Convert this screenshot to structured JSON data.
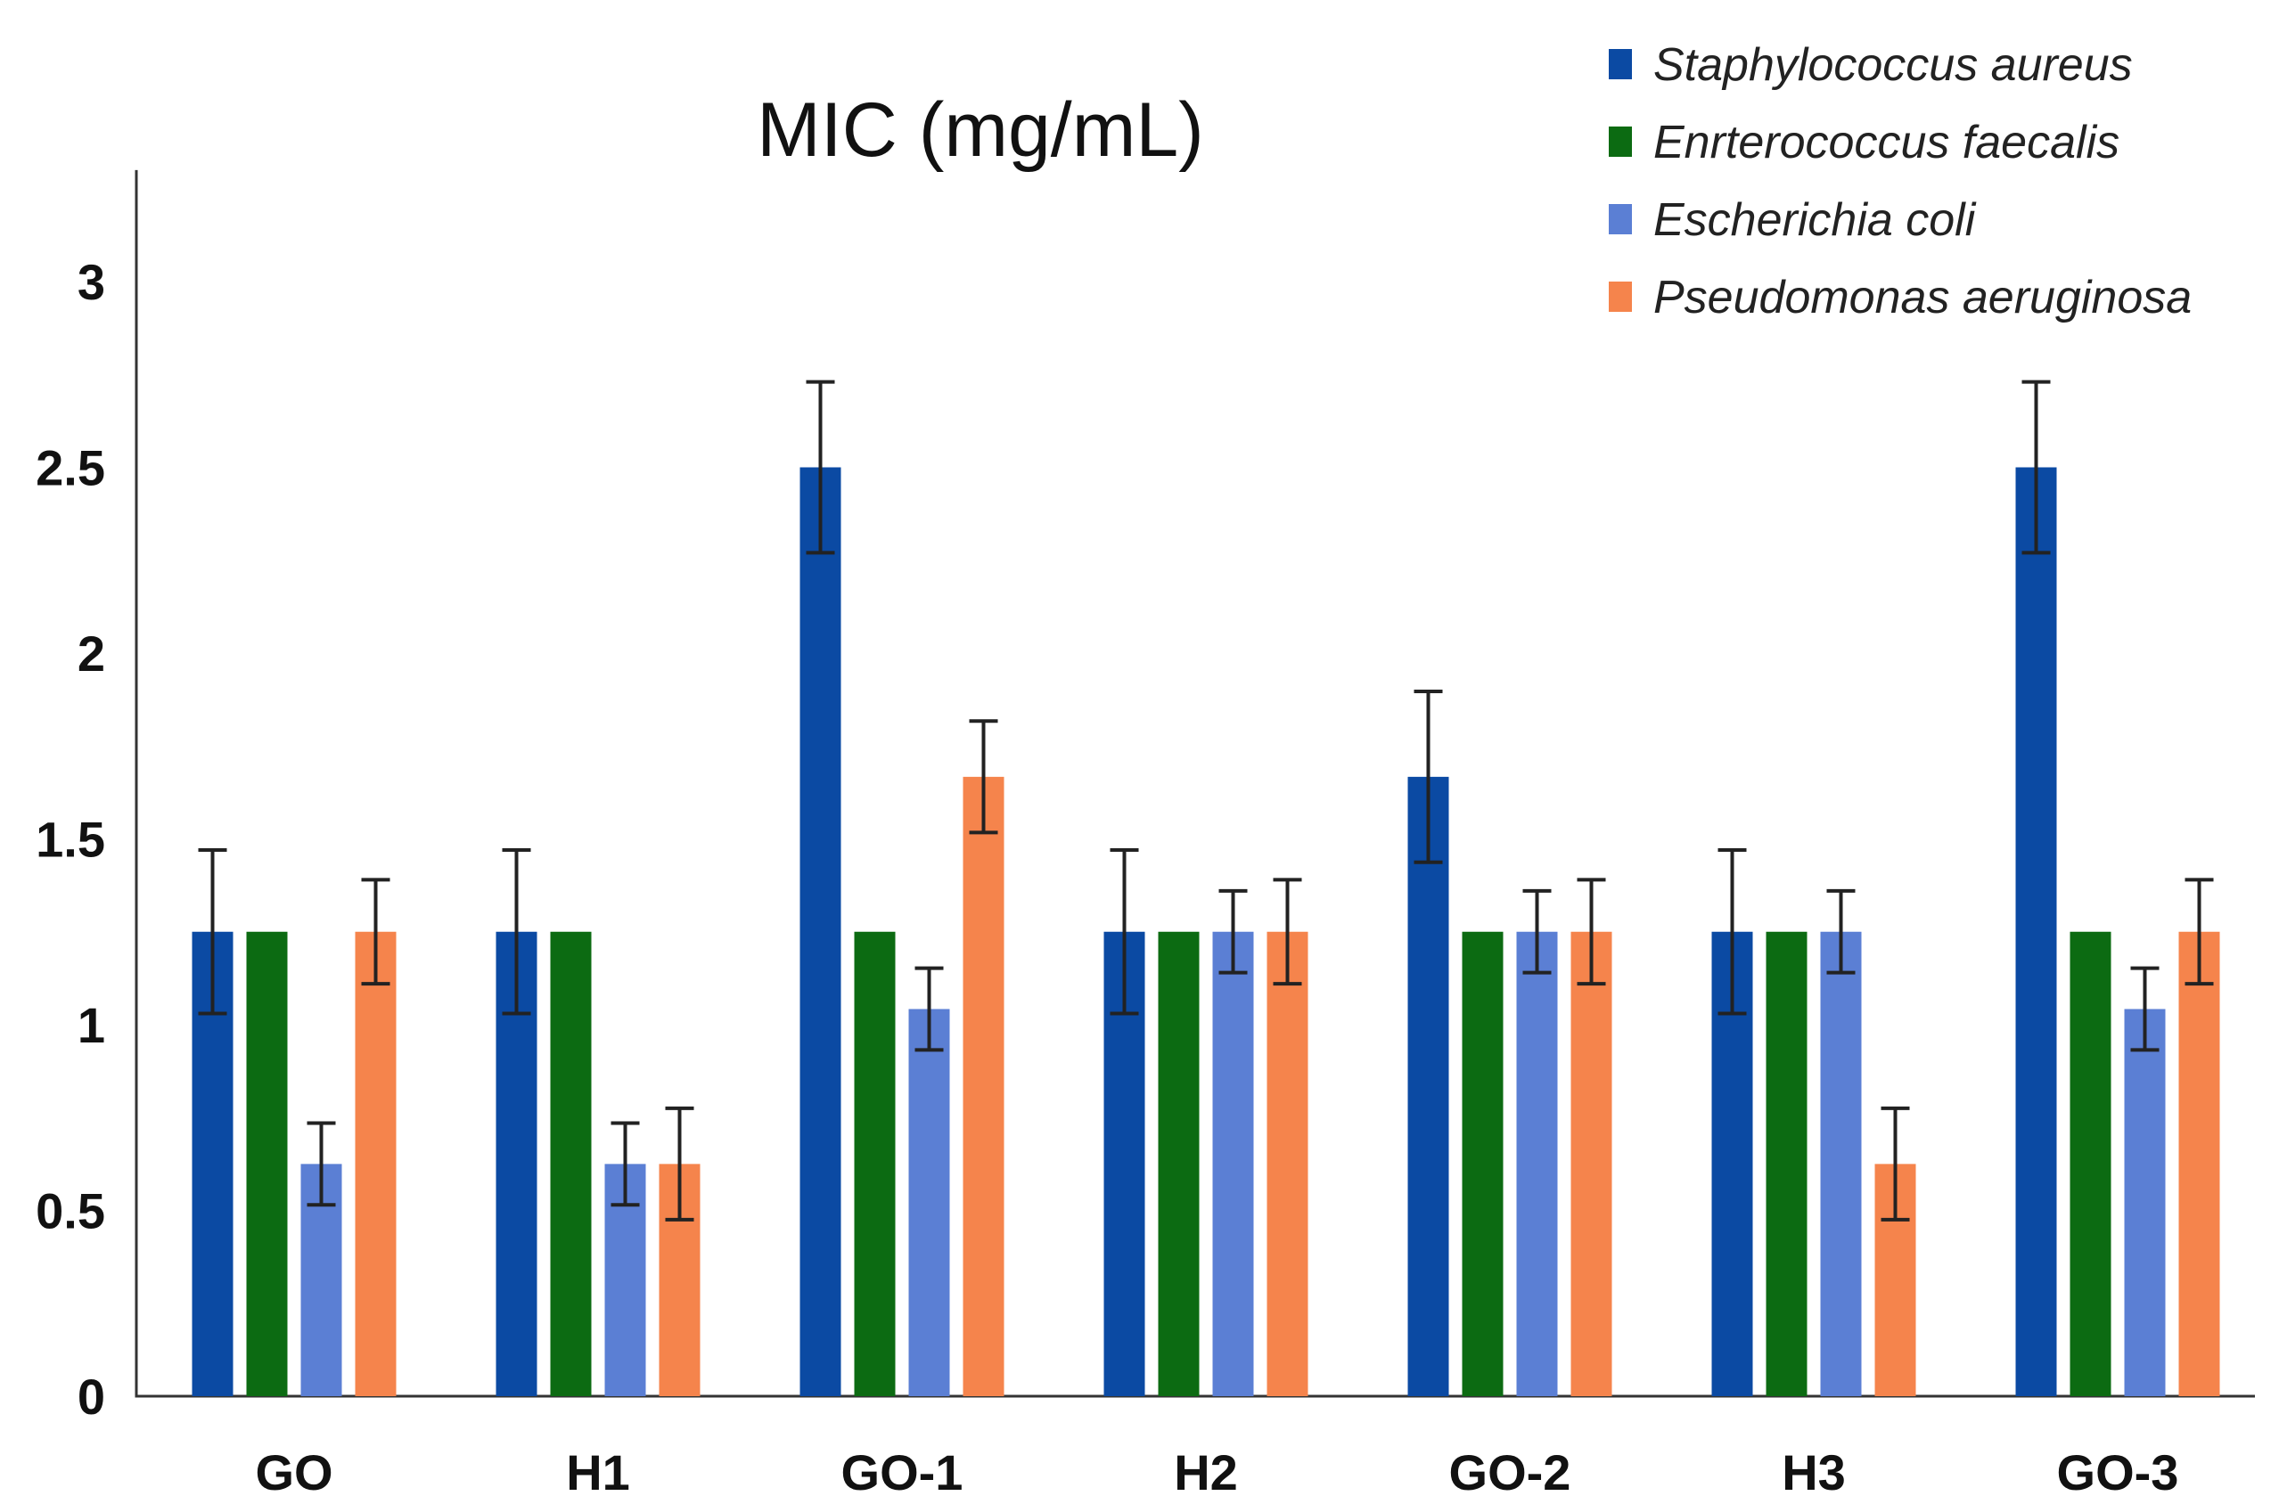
{
  "chart_data": {
    "type": "bar",
    "title": "MIC (mg/mL)",
    "xlabel": "",
    "ylabel": "",
    "ylim": [
      0,
      3.3
    ],
    "yticks": [
      "0",
      "0.5",
      "1",
      "1.5",
      "2",
      "2.5",
      "3"
    ],
    "ytick_values": [
      0,
      0.5,
      1,
      1.5,
      2,
      2.5,
      3
    ],
    "categories": [
      "GO",
      "H1",
      "GO-1",
      "H2",
      "GO-2",
      "H3",
      "GO-3"
    ],
    "legend_position": "top-right",
    "grid": false,
    "series": [
      {
        "name": "Staphylococcus aureus",
        "color": "#0b4aa3",
        "values": [
          1.25,
          1.25,
          2.5,
          1.25,
          1.667,
          1.25,
          2.5
        ],
        "errors": [
          0.22,
          0.22,
          0.23,
          0.22,
          0.23,
          0.22,
          0.23
        ]
      },
      {
        "name": "Enrterococcus faecalis",
        "color": "#0c6b12",
        "values": [
          1.25,
          1.25,
          1.25,
          1.25,
          1.25,
          1.25,
          1.25
        ],
        "errors": [
          0,
          0,
          0,
          0,
          0,
          0,
          0
        ]
      },
      {
        "name": "Escherichia coli",
        "color": "#5b7fd4",
        "values": [
          0.625,
          0.625,
          1.042,
          1.25,
          1.25,
          1.25,
          1.042
        ],
        "errors": [
          0.11,
          0.11,
          0.11,
          0.11,
          0.11,
          0.11,
          0.11
        ]
      },
      {
        "name": "Pseudomonas aeruginosa",
        "color": "#f5844c",
        "values": [
          1.25,
          0.625,
          1.667,
          1.25,
          1.25,
          0.625,
          1.25
        ],
        "errors": [
          0.14,
          0.15,
          0.15,
          0.14,
          0.14,
          0.15,
          0.14
        ]
      }
    ]
  }
}
